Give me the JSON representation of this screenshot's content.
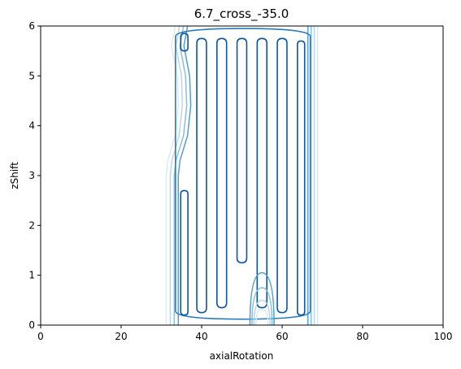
{
  "chart_data": {
    "type": "contour",
    "title": "6.7_cross_-35.0",
    "xlabel": "axialRotation",
    "ylabel": "zShift",
    "xlim": [
      0,
      100
    ],
    "ylim": [
      0,
      6
    ],
    "xticks": [
      "0",
      "20",
      "40",
      "60",
      "80",
      "100"
    ],
    "yticks": [
      "0",
      "1",
      "2",
      "3",
      "4",
      "5",
      "6"
    ],
    "grid": false,
    "legend": "none",
    "colormap": "Blues",
    "levels": [
      {
        "color": "#dbe9f6"
      },
      {
        "color": "#bad6eb"
      },
      {
        "color": "#89bedc"
      },
      {
        "color": "#539ecd"
      },
      {
        "color": "#2b7bba"
      },
      {
        "color": "#0b559f"
      }
    ],
    "outer_envelopes": [
      {
        "level": 0,
        "left": [
          [
            33.5,
            6
          ],
          [
            32.5,
            5.6
          ],
          [
            34.0,
            5.0
          ],
          [
            34.2,
            4.4
          ],
          [
            33.4,
            3.8
          ],
          [
            31.6,
            3.3
          ],
          [
            31.2,
            3.0
          ],
          [
            31.2,
            0
          ]
        ],
        "right": [
          68.8,
          6,
          0
        ]
      },
      {
        "level": 1,
        "left": [
          [
            34.5,
            6
          ],
          [
            33.6,
            5.6
          ],
          [
            35.0,
            5.0
          ],
          [
            35.2,
            4.4
          ],
          [
            34.4,
            3.8
          ],
          [
            32.6,
            3.3
          ],
          [
            32.2,
            3.0
          ],
          [
            32.2,
            0
          ]
        ],
        "right": [
          68.0,
          6,
          0
        ]
      },
      {
        "level": 2,
        "left": [
          [
            35.5,
            6
          ],
          [
            34.6,
            5.6
          ],
          [
            36.0,
            5.0
          ],
          [
            36.3,
            4.4
          ],
          [
            35.5,
            3.8
          ],
          [
            33.6,
            3.3
          ],
          [
            33.2,
            3.0
          ],
          [
            33.2,
            0
          ]
        ],
        "right": [
          67.2,
          6,
          0
        ]
      },
      {
        "level": 3,
        "left": [
          [
            36.5,
            6
          ],
          [
            35.6,
            5.6
          ],
          [
            37.0,
            5.0
          ],
          [
            37.3,
            4.4
          ],
          [
            36.5,
            3.8
          ],
          [
            34.6,
            3.3
          ],
          [
            34.2,
            3.0
          ],
          [
            34.2,
            0
          ]
        ],
        "right": [
          66.4,
          6,
          0
        ]
      }
    ],
    "inner_columns": [
      {
        "level": 4,
        "x0": 33.5,
        "x1": 67.0,
        "y0": 0.12,
        "y1": 5.95
      },
      {
        "level": 5,
        "x0": 34.8,
        "x1": 36.6,
        "y0": 0.2,
        "y1": 2.7
      },
      {
        "level": 5,
        "x0": 34.8,
        "x1": 36.6,
        "y0": 5.5,
        "y1": 5.85
      },
      {
        "level": 5,
        "x0": 38.8,
        "x1": 41.2,
        "y0": 0.25,
        "y1": 5.75
      },
      {
        "level": 5,
        "x0": 43.8,
        "x1": 46.2,
        "y0": 0.35,
        "y1": 5.75
      },
      {
        "level": 5,
        "x0": 48.8,
        "x1": 51.2,
        "y0": 1.25,
        "y1": 5.75
      },
      {
        "level": 5,
        "x0": 53.8,
        "x1": 56.2,
        "y0": 0.35,
        "y1": 5.75
      },
      {
        "level": 5,
        "x0": 58.8,
        "x1": 61.2,
        "y0": 0.25,
        "y1": 5.75
      },
      {
        "level": 5,
        "x0": 63.8,
        "x1": 65.6,
        "y0": 0.2,
        "y1": 5.7
      }
    ],
    "lower_lobes": [
      {
        "level": 3,
        "x": 55.0,
        "width": 6.0,
        "top": 1.05
      },
      {
        "level": 2,
        "x": 55.0,
        "width": 5.0,
        "top": 0.75
      },
      {
        "level": 1,
        "x": 55.0,
        "width": 4.0,
        "top": 0.5
      },
      {
        "level": 0,
        "x": 55.0,
        "width": 3.0,
        "top": 0.32
      }
    ]
  }
}
